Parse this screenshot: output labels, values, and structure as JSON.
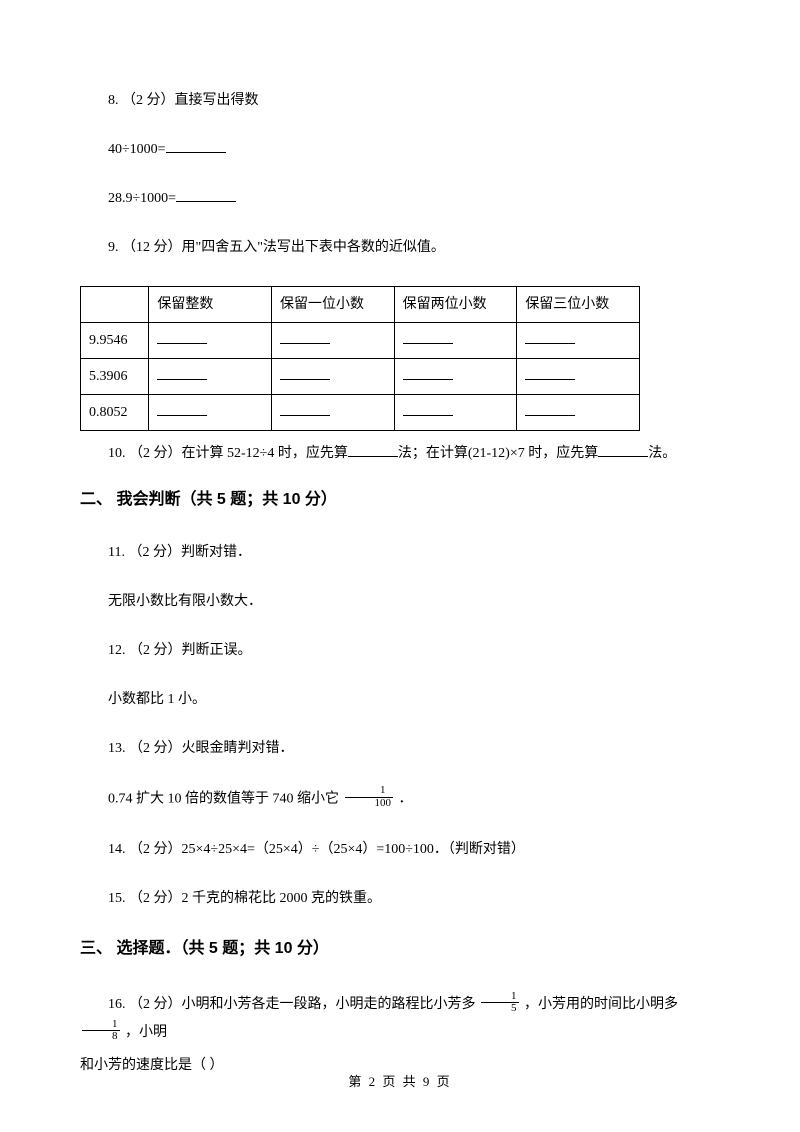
{
  "q8": {
    "prefix": "8. （2 分）直接写出得数",
    "line1_expr": "40÷1000=",
    "line2_expr": "28.9÷1000="
  },
  "q9": {
    "prefix": "9. （12 分）用\"四舍五入\"法写出下表中各数的近似值。",
    "table": {
      "headers": [
        "",
        "保留整数",
        "保留一位小数",
        "保留两位小数",
        "保留三位小数"
      ],
      "rows": [
        "9.9546",
        "5.3906",
        "0.8052"
      ]
    }
  },
  "q10": {
    "p1": "10. （2 分）在计算 52-12÷4 时，应先算",
    "p2": "法；在计算(21-12)×7 时，应先算",
    "p3": "法。"
  },
  "section2": "二、 我会判断（共 5 题；共 10 分）",
  "q11": {
    "prefix": "11. （2 分）判断对错．",
    "body": "无限小数比有限小数大．"
  },
  "q12": {
    "prefix": "12. （2 分）判断正误。",
    "body": "小数都比 1 小。"
  },
  "q13": {
    "prefix": "13. （2 分）火眼金睛判对错．",
    "body_p1": "0.74 扩大 10 倍的数值等于 740 缩小它 ",
    "frac": {
      "num": "1",
      "den": "100"
    },
    "body_p2": " ．"
  },
  "q14": {
    "text": "14. （2 分）25×4÷25×4=（25×4）÷（25×4）=100÷100．（判断对错）"
  },
  "q15": {
    "text": "15. （2 分）2 千克的棉花比 2000 克的铁重。"
  },
  "section3": "三、 选择题．（共 5 题；共 10 分）",
  "q16": {
    "p1": "16. （2 分）小明和小芳各走一段路，小明走的路程比小芳多 ",
    "frac1": {
      "num": "1",
      "den": "5"
    },
    "p2": " ，小芳用的时间比小明多 ",
    "frac2": {
      "num": "1",
      "den": "8"
    },
    "p3": " ，小明",
    "p4": "和小芳的速度比是（    ）"
  },
  "footer": "第 2 页 共 9 页"
}
